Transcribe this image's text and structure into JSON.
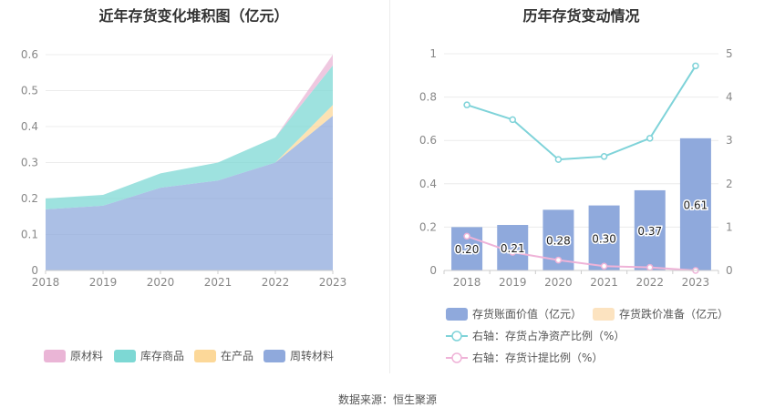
{
  "source": "数据来源：恒生聚源",
  "chart_data": [
    {
      "type": "area",
      "stacked": true,
      "title": "近年存货变化堆积图（亿元）",
      "x": [
        "2018",
        "2019",
        "2020",
        "2021",
        "2022",
        "2023"
      ],
      "ylim": [
        0,
        0.6
      ],
      "yticks": [
        "0",
        "0.1",
        "0.2",
        "0.3",
        "0.4",
        "0.5",
        "0.6"
      ],
      "grid": true,
      "legend_position": "bottom",
      "series": [
        {
          "name": "周转材料",
          "color": "#8fa9dc",
          "values": [
            0.17,
            0.18,
            0.23,
            0.25,
            0.3,
            0.43
          ]
        },
        {
          "name": "在产品",
          "color": "#fcd899",
          "values": [
            0.0,
            0.0,
            0.0,
            0.0,
            0.0,
            0.03
          ]
        },
        {
          "name": "库存商品",
          "color": "#7dd8d4",
          "values": [
            0.03,
            0.03,
            0.04,
            0.05,
            0.07,
            0.11
          ]
        },
        {
          "name": "原材料",
          "color": "#eab5d6",
          "values": [
            0.0,
            0.0,
            0.0,
            0.0,
            0.0,
            0.03
          ]
        }
      ],
      "legend_order": [
        "原材料",
        "库存商品",
        "在产品",
        "周转材料"
      ]
    },
    {
      "type": "bar",
      "title": "历年存货变动情况",
      "x": [
        "2018",
        "2019",
        "2020",
        "2021",
        "2022",
        "2023"
      ],
      "ylim_left": [
        0,
        1
      ],
      "yticks_left": [
        "0",
        "0.2",
        "0.4",
        "0.6",
        "0.8",
        "1"
      ],
      "ylim_right": [
        0,
        5
      ],
      "yticks_right": [
        "0",
        "1",
        "2",
        "3",
        "4",
        "5"
      ],
      "grid": true,
      "legend_position": "bottom",
      "series": [
        {
          "name": "存货账面价值（亿元）",
          "kind": "bar",
          "axis": "left",
          "color": "#8fa9dc",
          "values": [
            0.2,
            0.21,
            0.28,
            0.3,
            0.37,
            0.61
          ],
          "labels": [
            "0.20",
            "0.21",
            "0.28",
            "0.30",
            "0.37",
            "0.61"
          ]
        },
        {
          "name": "存货跌价准备（亿元）",
          "kind": "bar",
          "axis": "left",
          "color": "#fce3c0",
          "values": [
            0,
            0,
            0,
            0,
            0,
            0
          ]
        },
        {
          "name": "右轴：存货占净资产比例（%）",
          "kind": "line",
          "axis": "right",
          "color": "#7fd3d9",
          "values": [
            3.82,
            3.48,
            2.56,
            2.63,
            3.05,
            4.72
          ]
        },
        {
          "name": "右轴：存货计提比例（%）",
          "kind": "line",
          "axis": "right",
          "color": "#efb3d8",
          "values": [
            0.79,
            0.42,
            0.24,
            0.1,
            0.07,
            0.0
          ]
        }
      ]
    }
  ]
}
